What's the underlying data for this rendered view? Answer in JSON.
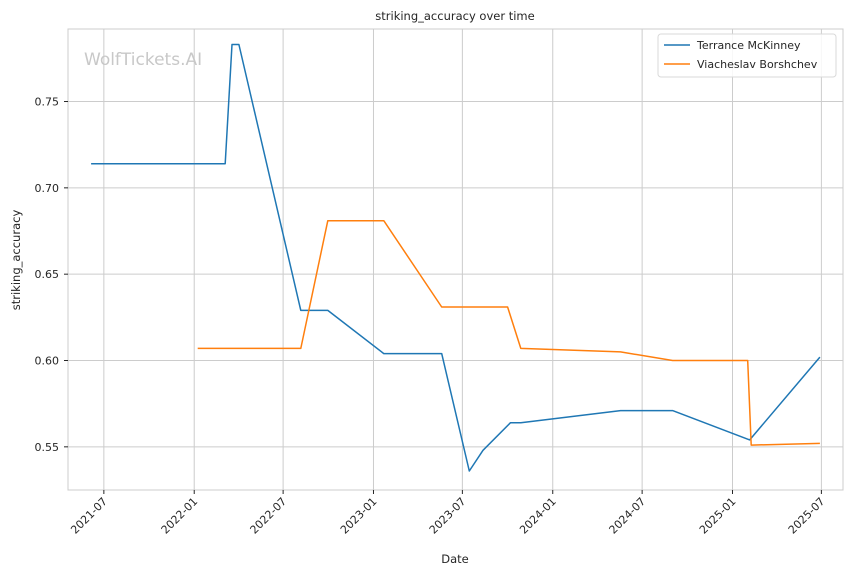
{
  "chart_data": {
    "type": "line",
    "title": "striking_accuracy over time",
    "xlabel": "Date",
    "ylabel": "striking_accuracy",
    "watermark": "WolfTickets.AI",
    "xlim": [
      "2021-04-19",
      "2025-08-14"
    ],
    "ylim": [
      0.525,
      0.792
    ],
    "x_ticks": [
      "2021-07",
      "2022-01",
      "2022-07",
      "2023-01",
      "2023-07",
      "2024-01",
      "2024-07",
      "2025-01",
      "2025-07"
    ],
    "y_ticks": [
      0.55,
      0.6,
      0.65,
      0.7,
      0.75
    ],
    "y_tick_labels": [
      "0.55",
      "0.60",
      "0.65",
      "0.70",
      "0.75"
    ],
    "grid": true,
    "legend_position": "top-right",
    "series": [
      {
        "name": "Terrance McKinney",
        "color": "#1f77b4",
        "points": [
          {
            "x": "2021-06-05",
            "y": 0.714
          },
          {
            "x": "2022-03-05",
            "y": 0.714
          },
          {
            "x": "2022-03-19",
            "y": 0.783
          },
          {
            "x": "2022-04-02",
            "y": 0.783
          },
          {
            "x": "2022-08-06",
            "y": 0.629
          },
          {
            "x": "2022-09-30",
            "y": 0.629
          },
          {
            "x": "2023-01-22",
            "y": 0.604
          },
          {
            "x": "2023-05-20",
            "y": 0.604
          },
          {
            "x": "2023-07-15",
            "y": 0.536
          },
          {
            "x": "2023-08-12",
            "y": 0.548
          },
          {
            "x": "2023-10-07",
            "y": 0.564
          },
          {
            "x": "2023-10-28",
            "y": 0.564
          },
          {
            "x": "2024-05-18",
            "y": 0.571
          },
          {
            "x": "2024-09-01",
            "y": 0.571
          },
          {
            "x": "2025-02-05",
            "y": 0.554
          },
          {
            "x": "2025-06-28",
            "y": 0.602
          }
        ]
      },
      {
        "name": "Viacheslav Borshchev",
        "color": "#ff7f0e",
        "points": [
          {
            "x": "2022-01-08",
            "y": 0.607
          },
          {
            "x": "2022-08-06",
            "y": 0.607
          },
          {
            "x": "2022-09-30",
            "y": 0.681
          },
          {
            "x": "2023-01-22",
            "y": 0.681
          },
          {
            "x": "2023-05-20",
            "y": 0.631
          },
          {
            "x": "2023-10-01",
            "y": 0.631
          },
          {
            "x": "2023-10-28",
            "y": 0.607
          },
          {
            "x": "2024-05-18",
            "y": 0.605
          },
          {
            "x": "2024-09-01",
            "y": 0.6
          },
          {
            "x": "2025-02-01",
            "y": 0.6
          },
          {
            "x": "2025-02-08",
            "y": 0.551
          },
          {
            "x": "2025-06-28",
            "y": 0.552
          }
        ]
      }
    ]
  }
}
